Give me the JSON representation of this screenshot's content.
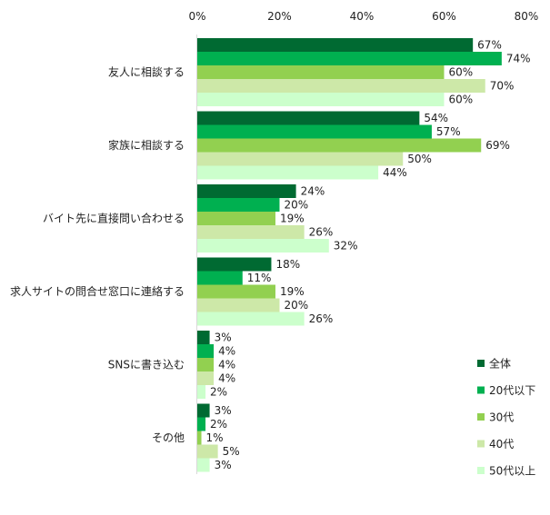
{
  "chart_data": {
    "type": "bar",
    "orientation": "horizontal",
    "title": "",
    "xlabel": "",
    "ylabel": "",
    "xlim": [
      0,
      80
    ],
    "x_ticks": [
      "0%",
      "20%",
      "40%",
      "60%",
      "80%"
    ],
    "grid": false,
    "legend_position": "bottom-right",
    "categories": [
      "友人に相談する",
      "家族に相談する",
      "バイト先に直接問い合わせる",
      "求人サイトの問合せ窓口に連絡する",
      "SNSに書き込む",
      "その他"
    ],
    "series": [
      {
        "name": "全体",
        "color": "#006a32",
        "values": [
          67,
          54,
          24,
          18,
          3,
          3
        ]
      },
      {
        "name": "20代以下",
        "color": "#00b050",
        "values": [
          74,
          57,
          20,
          11,
          4,
          2
        ]
      },
      {
        "name": "30代",
        "color": "#92d050",
        "values": [
          60,
          69,
          19,
          19,
          4,
          1
        ]
      },
      {
        "name": "40代",
        "color": "#cde8a8",
        "values": [
          70,
          50,
          26,
          20,
          4,
          5
        ]
      },
      {
        "name": "50代以上",
        "color": "#ccffcc",
        "values": [
          60,
          44,
          32,
          26,
          2,
          3
        ]
      }
    ],
    "value_suffix": "%"
  }
}
